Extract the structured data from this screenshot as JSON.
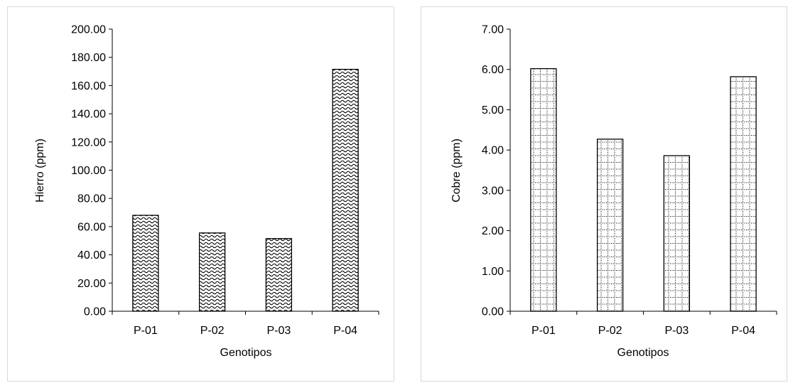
{
  "chart_data": [
    {
      "type": "bar",
      "categories": [
        "P-01",
        "P-02",
        "P-03",
        "P-04"
      ],
      "values": [
        68.0,
        55.5,
        51.5,
        171.5
      ],
      "xlabel": "Genotipos",
      "ylabel": "Hierro (ppm)",
      "ylim": [
        0,
        200
      ],
      "yticks": [
        "0.00",
        "20.00",
        "40.00",
        "60.00",
        "80.00",
        "100.00",
        "120.00",
        "140.00",
        "160.00",
        "180.00",
        "200.00"
      ],
      "pattern": "wave",
      "grid": false
    },
    {
      "type": "bar",
      "categories": [
        "P-01",
        "P-02",
        "P-03",
        "P-04"
      ],
      "values": [
        6.02,
        4.27,
        3.86,
        5.82
      ],
      "xlabel": "Genotipos",
      "ylabel": "Cobre (ppm)",
      "ylim": [
        0,
        7
      ],
      "yticks": [
        "0.00",
        "1.00",
        "2.00",
        "3.00",
        "4.00",
        "5.00",
        "6.00",
        "7.00"
      ],
      "pattern": "dotted-grid",
      "grid": false
    }
  ]
}
